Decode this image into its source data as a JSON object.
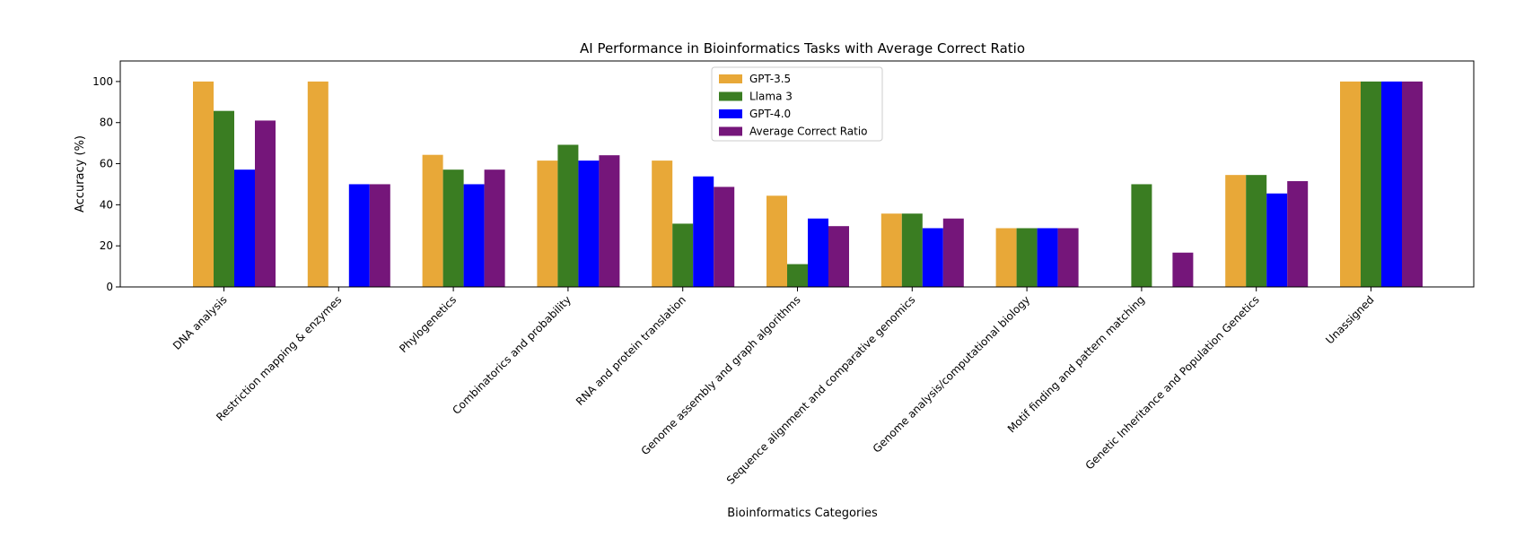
{
  "chart_data": {
    "type": "bar",
    "title": "AI Performance in Bioinformatics Tasks with Average Correct Ratio",
    "xlabel": "Bioinformatics Categories",
    "ylabel": "Accuracy (%)",
    "ylim": [
      0,
      110
    ],
    "yticks": [
      0,
      20,
      40,
      60,
      80,
      100
    ],
    "grid": false,
    "legend_position": "top-center",
    "categories": [
      "DNA analysis",
      "Restriction mapping & enzymes",
      "Phylogenetics",
      "Combinatorics and probability",
      "RNA and protein translation",
      "Genome assembly and graph algorithms",
      "Sequence alignment and comparative genomics",
      "Genome analysis/computational biology",
      "Motif finding and pattern matching",
      "Genetic Inheritance and Population Genetics",
      "Unassigned"
    ],
    "series": [
      {
        "name": "GPT-3.5",
        "color": "#e8a838",
        "values": [
          100,
          100,
          64.3,
          61.5,
          61.5,
          44.4,
          35.7,
          28.6,
          0,
          54.5,
          100
        ]
      },
      {
        "name": "Llama 3",
        "color": "#3a7d22",
        "values": [
          85.7,
          0,
          57.1,
          69.2,
          30.8,
          11.1,
          35.7,
          28.6,
          50,
          54.5,
          100
        ]
      },
      {
        "name": "GPT-4.0",
        "color": "#0000ff",
        "values": [
          57.1,
          50,
          50,
          61.5,
          53.8,
          33.3,
          28.6,
          28.6,
          0,
          45.5,
          100
        ]
      },
      {
        "name": "Average Correct Ratio",
        "color": "#75167a",
        "values": [
          81,
          50,
          57.1,
          64.1,
          48.7,
          29.6,
          33.3,
          28.6,
          16.7,
          51.5,
          100
        ]
      }
    ]
  }
}
